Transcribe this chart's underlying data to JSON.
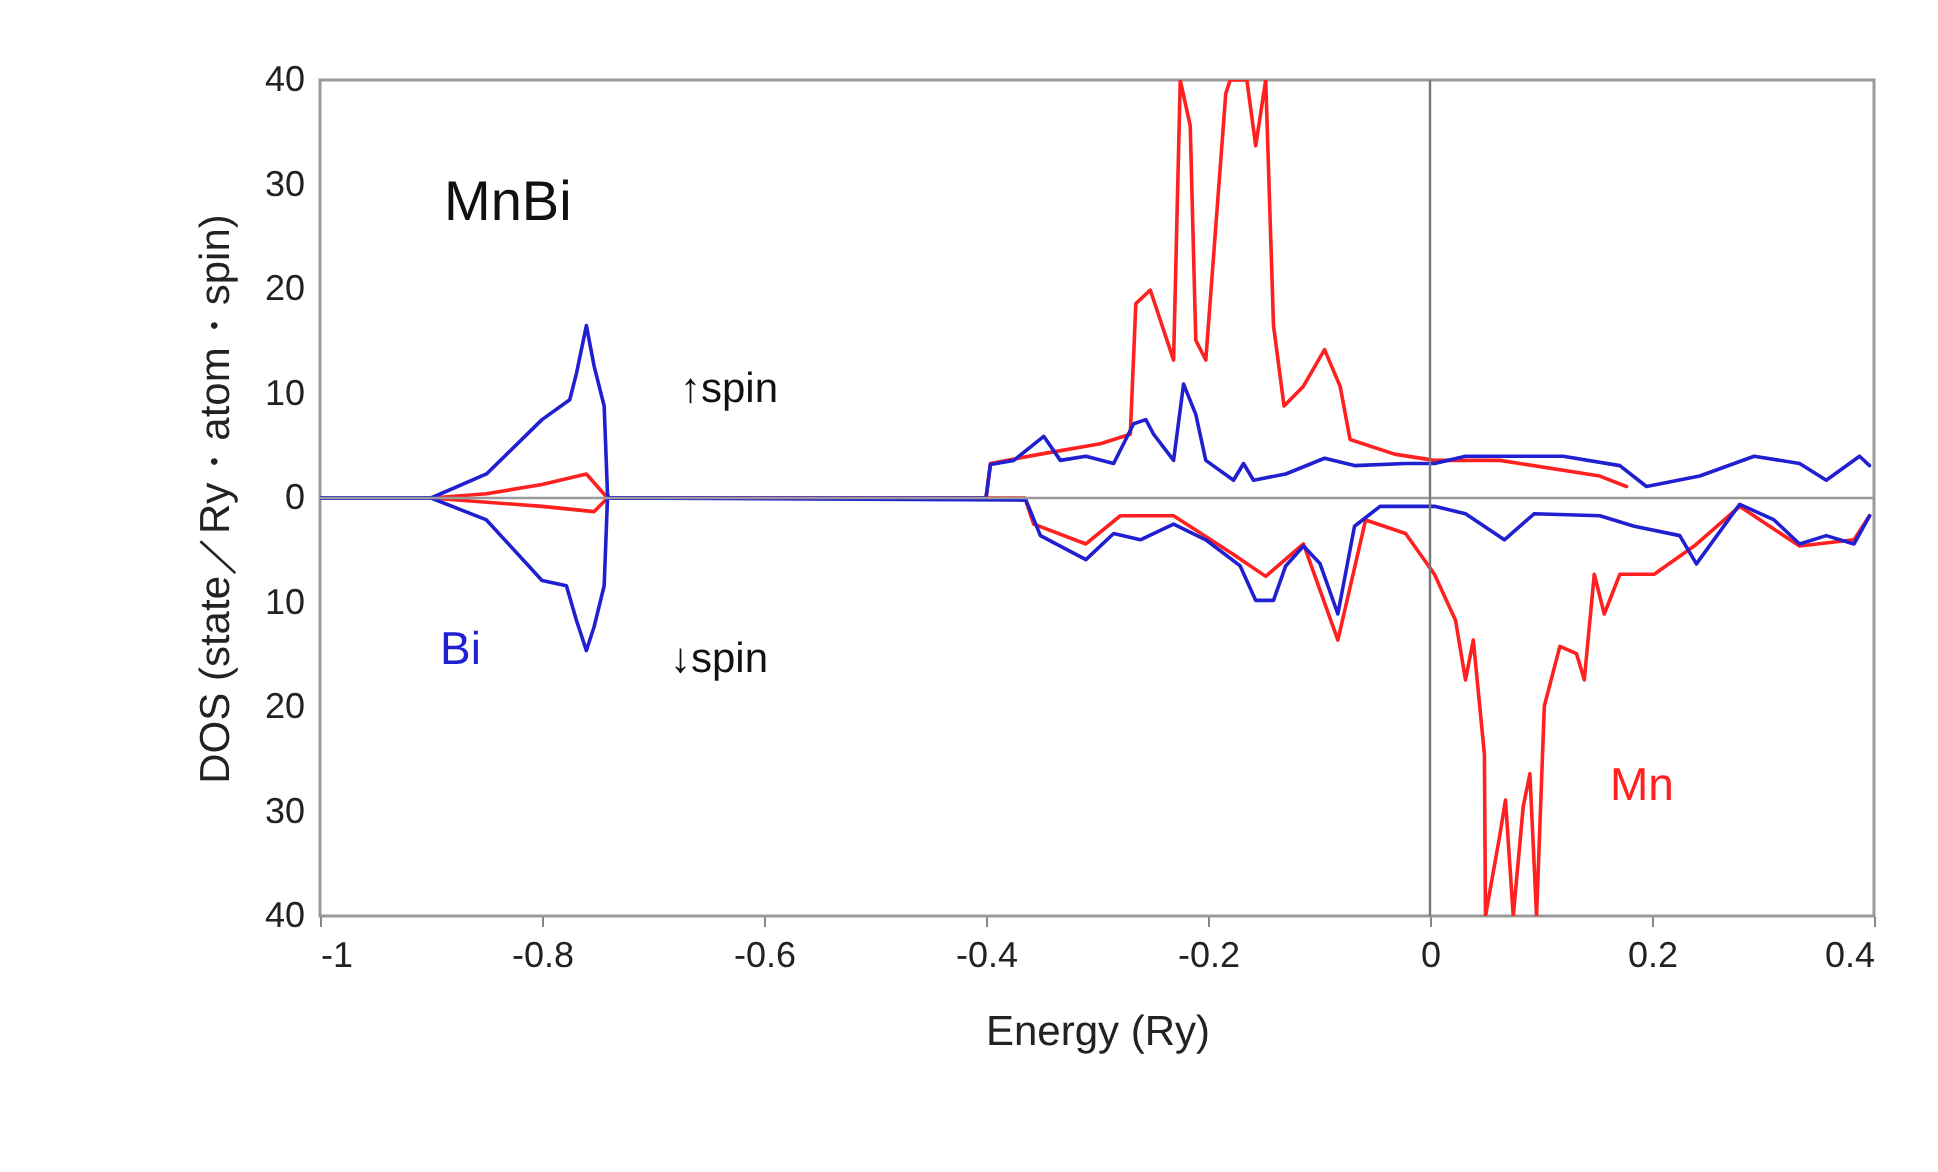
{
  "chart_data": {
    "type": "line",
    "xlabel": "Energy (Ry)",
    "ylabel": "DOS (state／Ry・atom・spin)",
    "annotations": [
      "MnBi",
      "↑spin",
      "↓spin"
    ],
    "xlim": [
      -1,
      0.4
    ],
    "ylim": [
      -40,
      40
    ],
    "xticks": [
      -1,
      -0.8,
      -0.6,
      -0.4,
      -0.2,
      0,
      0.2,
      0.4
    ],
    "yticks": [
      {
        "value": -40,
        "label": "40"
      },
      {
        "value": -30,
        "label": "30"
      },
      {
        "value": -20,
        "label": "20"
      },
      {
        "value": -10,
        "label": "10"
      },
      0,
      10,
      20,
      30,
      40
    ],
    "grid": false,
    "marker": "none",
    "line_style": "solid",
    "ref_lines": [
      {
        "axis": "y",
        "value": 0,
        "color": "#999999"
      },
      {
        "axis": "x",
        "value": 0,
        "color": "#777777"
      }
    ],
    "series": [
      {
        "color": "#2020d0",
        "x": [
          -1,
          -0.9,
          -0.85,
          -0.8,
          -0.775,
          -0.769,
          -0.76,
          -0.753,
          -0.744,
          -0.741,
          -0.74,
          -0.4,
          -0.396,
          -0.375,
          -0.348,
          -0.333,
          -0.31,
          -0.285,
          -0.267,
          -0.256,
          -0.249,
          -0.231,
          -0.222,
          -0.211,
          -0.202,
          -0.177,
          -0.168,
          -0.159,
          -0.13,
          -0.095,
          -0.068,
          -0.022,
          0.004,
          0.032,
          0.12,
          0.171,
          0.195,
          0.243,
          0.292,
          0.333,
          0.357,
          0.387,
          0.396
        ],
        "values": [
          0,
          0,
          2.3,
          7.5,
          9.4,
          11.9,
          16.5,
          12.6,
          8.8,
          0.4,
          0,
          0,
          3.2,
          3.6,
          5.9,
          3.6,
          4.0,
          3.3,
          7.1,
          7.5,
          6.1,
          3.6,
          10.9,
          8.0,
          3.6,
          1.7,
          3.3,
          1.7,
          2.3,
          3.8,
          3.1,
          3.3,
          3.3,
          4.0,
          4.0,
          3.1,
          1.1,
          2.1,
          4.0,
          3.3,
          1.7,
          4.0,
          3.1
        ]
      },
      {
        "name": "Bi",
        "color": "#2020d0",
        "x": [
          -1,
          -0.9,
          -0.85,
          -0.8,
          -0.778,
          -0.769,
          -0.76,
          -0.753,
          -0.744,
          -0.741,
          -0.364,
          -0.351,
          -0.31,
          -0.285,
          -0.261,
          -0.231,
          -0.202,
          -0.171,
          -0.157,
          -0.141,
          -0.13,
          -0.114,
          -0.099,
          -0.083,
          -0.068,
          -0.045,
          0.004,
          0.032,
          0.067,
          0.094,
          0.153,
          0.184,
          0.225,
          0.24,
          0.279,
          0.31,
          0.333,
          0.357,
          0.382,
          0.396
        ],
        "values": [
          0,
          0,
          -2.1,
          -7.9,
          -8.4,
          -11.7,
          -14.6,
          -12.3,
          -8.4,
          0,
          -0.2,
          -3.6,
          -5.9,
          -3.4,
          -4.0,
          -2.5,
          -4.0,
          -6.5,
          -9.8,
          -9.8,
          -6.5,
          -4.6,
          -6.3,
          -11.1,
          -2.7,
          -0.8,
          -0.8,
          -1.5,
          -4.0,
          -1.5,
          -1.7,
          -2.7,
          -3.6,
          -6.3,
          -0.6,
          -2.1,
          -4.4,
          -3.6,
          -4.4,
          -1.7
        ]
      },
      {
        "color": "#ff2020",
        "x": [
          -0.9,
          -0.85,
          -0.8,
          -0.76,
          -0.741,
          -0.4,
          -0.396,
          -0.351,
          -0.297,
          -0.27,
          -0.265,
          -0.252,
          -0.231,
          -0.225,
          -0.216,
          -0.211,
          -0.202,
          -0.184,
          -0.18,
          -0.165,
          -0.157,
          -0.148,
          -0.141,
          -0.1315,
          -0.114,
          -0.095,
          -0.081,
          -0.072,
          -0.032,
          0.004,
          0.063,
          0.153,
          0.177
        ],
        "values": [
          0,
          0.4,
          1.3,
          2.3,
          0,
          0,
          3.3,
          4.2,
          5.2,
          6.1,
          18.6,
          19.9,
          13.2,
          40,
          35.6,
          15.1,
          13.2,
          38.7,
          40,
          40,
          33.7,
          40,
          16.5,
          8.8,
          10.7,
          14.2,
          10.7,
          5.6,
          4.2,
          3.6,
          3.6,
          2.1,
          1.1
        ]
      },
      {
        "name": "Mn",
        "color": "#ff2020",
        "x": [
          -0.9,
          -0.8,
          -0.753,
          -0.741,
          -0.4,
          -0.365,
          -0.357,
          -0.31,
          -0.279,
          -0.231,
          -0.177,
          -0.148,
          -0.114,
          -0.083,
          -0.058,
          -0.022,
          0.004,
          0.023,
          0.032,
          0.039,
          0.049,
          0.05,
          0.063,
          0.068,
          0.075,
          0.084,
          0.09,
          0.096,
          0.103,
          0.117,
          0.132,
          0.139,
          0.148,
          0.157,
          0.171,
          0.202,
          0.238,
          0.279,
          0.333,
          0.382,
          0.396
        ],
        "values": [
          0,
          -0.8,
          -1.3,
          0,
          0,
          0,
          -2.5,
          -4.4,
          -1.7,
          -1.7,
          -5.4,
          -7.5,
          -4.4,
          -13.6,
          -2.1,
          -3.4,
          -7.3,
          -11.7,
          -17.4,
          -13.6,
          -24.5,
          -40,
          -32.2,
          -28.9,
          -40,
          -29.5,
          -26.4,
          -40,
          -19.9,
          -14.2,
          -14.9,
          -17.4,
          -7.3,
          -11.1,
          -7.3,
          -7.3,
          -4.6,
          -0.8,
          -4.6,
          -4.0,
          -1.7
        ]
      }
    ]
  }
}
